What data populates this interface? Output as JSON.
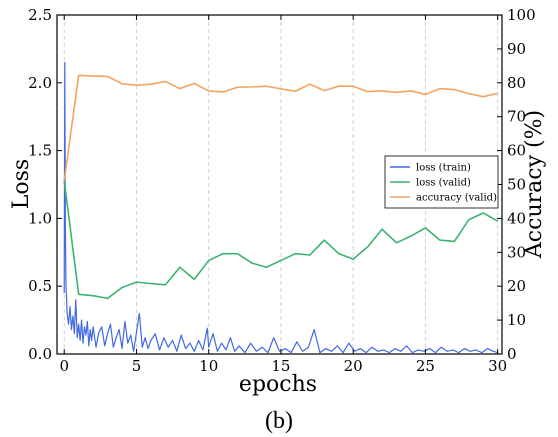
{
  "chart_data": {
    "type": "line",
    "caption": "(b)",
    "xlabel": "epochs",
    "ylabel_left": "Loss",
    "ylabel_right": "Accuracy (%)",
    "xlim": [
      -0.5,
      30.3
    ],
    "ylim_left": [
      0,
      2.5
    ],
    "ylim_right": [
      0,
      100
    ],
    "xticks": [
      0,
      5,
      10,
      15,
      20,
      25,
      30
    ],
    "yticks_left": [
      0.0,
      0.5,
      1.0,
      1.5,
      2.0,
      2.5
    ],
    "yticks_right": [
      0,
      10,
      20,
      30,
      40,
      50,
      60,
      70,
      80,
      90,
      100
    ],
    "grid": "vertical dashed at x ticks",
    "legend_position": "right, mid-height",
    "colors": {
      "train": "#4169e1",
      "valid": "#3cb371",
      "accuracy": "#f4a460"
    },
    "series": [
      {
        "name": "loss (train)",
        "axis": "left",
        "x": [
          0,
          0.04,
          0.08,
          0.12,
          0.16,
          0.2,
          0.3,
          0.4,
          0.5,
          0.6,
          0.7,
          0.8,
          0.9,
          1.0,
          1.1,
          1.2,
          1.3,
          1.4,
          1.5,
          1.6,
          1.7,
          1.8,
          1.9,
          2.0,
          2.2,
          2.4,
          2.6,
          2.8,
          3.0,
          3.2,
          3.4,
          3.6,
          3.8,
          4.0,
          4.2,
          4.4,
          4.6,
          4.8,
          5.0,
          5.2,
          5.4,
          5.6,
          5.8,
          6.0,
          6.3,
          6.6,
          6.9,
          7.2,
          7.5,
          7.8,
          8.1,
          8.4,
          8.7,
          9.0,
          9.3,
          9.6,
          9.9,
          10.0,
          10.3,
          10.6,
          10.9,
          11.2,
          11.5,
          11.8,
          12.1,
          12.5,
          12.9,
          13.3,
          13.7,
          14.1,
          14.5,
          14.9,
          15.3,
          15.7,
          16.1,
          16.5,
          16.9,
          17.3,
          17.7,
          18.1,
          18.5,
          18.9,
          19.3,
          19.7,
          20.1,
          20.5,
          20.9,
          21.3,
          21.7,
          22.1,
          22.5,
          22.9,
          23.3,
          23.7,
          24.1,
          24.5,
          24.9,
          25.3,
          25.7,
          26.1,
          26.5,
          26.9,
          27.3,
          27.7,
          28.1,
          28.5,
          28.9,
          29.3,
          29.7,
          30.0
        ],
        "values": [
          0.45,
          2.15,
          0.9,
          0.5,
          0.42,
          0.3,
          0.22,
          0.35,
          0.18,
          0.28,
          0.15,
          0.4,
          0.12,
          0.22,
          0.1,
          0.25,
          0.08,
          0.2,
          0.14,
          0.24,
          0.06,
          0.18,
          0.1,
          0.2,
          0.05,
          0.16,
          0.2,
          0.06,
          0.15,
          0.22,
          0.05,
          0.12,
          0.18,
          0.04,
          0.24,
          0.08,
          0.14,
          0.02,
          0.16,
          0.3,
          0.05,
          0.12,
          0.04,
          0.1,
          0.15,
          0.03,
          0.12,
          0.05,
          0.1,
          0.02,
          0.14,
          0.04,
          0.08,
          0.02,
          0.1,
          0.03,
          0.19,
          0.05,
          0.15,
          0.02,
          0.08,
          0.03,
          0.12,
          0.02,
          0.06,
          0.01,
          0.08,
          0.02,
          0.05,
          0.01,
          0.12,
          0.02,
          0.04,
          0.01,
          0.09,
          0.02,
          0.05,
          0.18,
          0.01,
          0.04,
          0.02,
          0.06,
          0.01,
          0.08,
          0.02,
          0.04,
          0.01,
          0.05,
          0.02,
          0.03,
          0.01,
          0.04,
          0.02,
          0.06,
          0.01,
          0.03,
          0.02,
          0.04,
          0.01,
          0.05,
          0.02,
          0.03,
          0.01,
          0.04,
          0.02,
          0.03,
          0.01,
          0.04,
          0.02,
          0.01
        ]
      },
      {
        "name": "loss (valid)",
        "axis": "left",
        "x": [
          0,
          1,
          2,
          3,
          4,
          5,
          6,
          7,
          8,
          9,
          10,
          11,
          12,
          13,
          14,
          15,
          16,
          17,
          18,
          19,
          20,
          21,
          22,
          23,
          24,
          25,
          26,
          27,
          28,
          29,
          30
        ],
        "values": [
          1.28,
          0.44,
          0.43,
          0.41,
          0.49,
          0.53,
          0.52,
          0.51,
          0.64,
          0.55,
          0.69,
          0.74,
          0.74,
          0.67,
          0.64,
          0.69,
          0.74,
          0.73,
          0.84,
          0.74,
          0.7,
          0.79,
          0.92,
          0.82,
          0.87,
          0.93,
          0.84,
          0.83,
          0.99,
          1.04,
          0.98
        ]
      },
      {
        "name": "accuracy (valid)",
        "axis": "right",
        "x": [
          0,
          1,
          2,
          3,
          4,
          5,
          6,
          7,
          8,
          9,
          10,
          11,
          12,
          13,
          14,
          15,
          16,
          17,
          18,
          19,
          20,
          21,
          22,
          23,
          24,
          25,
          26,
          27,
          28,
          29,
          30
        ],
        "values": [
          51,
          82.2,
          82.0,
          81.9,
          79.7,
          79.3,
          79.6,
          80.4,
          78.3,
          79.8,
          77.6,
          77.3,
          78.7,
          78.8,
          79.0,
          78.2,
          77.5,
          79.6,
          77.7,
          79.0,
          79.0,
          77.4,
          77.6,
          77.2,
          77.6,
          76.6,
          78.3,
          78.0,
          76.8,
          75.9,
          76.9
        ]
      }
    ]
  }
}
